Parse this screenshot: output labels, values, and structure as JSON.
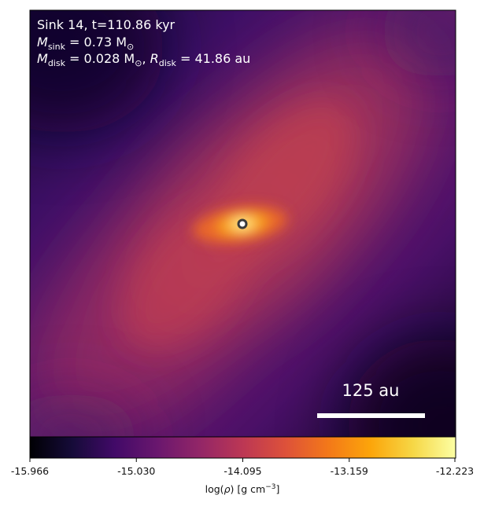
{
  "annotation": {
    "line1": "Sink 14, t=110.86 kyr",
    "m_sink_prefix": "M",
    "m_sink_sub": "sink",
    "m_sink_value": " = 0.73 M",
    "m_sink_unit_sub": "⊙",
    "m_disk_prefix": "M",
    "m_disk_sub": "disk",
    "m_disk_value": " = 0.028 M",
    "m_disk_unit_sub": "⊙",
    "r_disk_sep": ", ",
    "r_disk_prefix": "R",
    "r_disk_sub": "disk",
    "r_disk_value": " = 41.86 au"
  },
  "scale_bar": {
    "label": "125 au"
  },
  "colorbar": {
    "colormap": "inferno",
    "ticks": [
      "-15.966",
      "-15.030",
      "-14.095",
      "-13.159",
      "-12.223"
    ],
    "label_prefix": "log(",
    "label_rho": "ρ",
    "label_mid": ") [g cm",
    "label_exp": "−3",
    "label_suffix": "]"
  },
  "sink_marker": {
    "fill": "#ffffff",
    "stroke": "#3a3a3a"
  }
}
